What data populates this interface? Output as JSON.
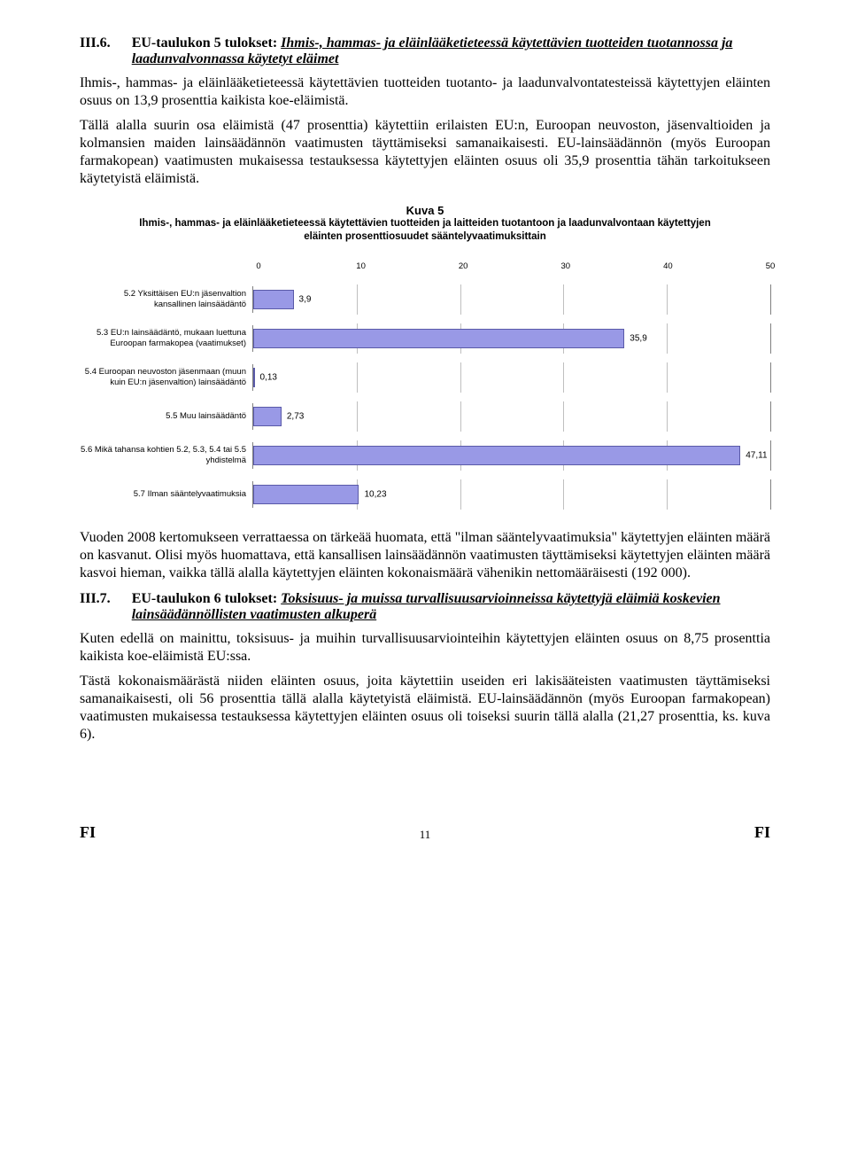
{
  "section6": {
    "num": "III.6.",
    "title_lead": "EU-taulukon 5 tulokset: ",
    "title_italic": "Ihmis-, hammas- ja eläinlääketieteessä käytettävien tuotteiden tuotannossa ja laadunvalvonnassa käytetyt eläimet",
    "p1": "Ihmis-, hammas- ja eläinlääketieteessä käytettävien tuotteiden tuotanto- ja laadunvalvontatesteissä käytettyjen eläinten osuus on 13,9 prosenttia kaikista koe-eläimistä.",
    "p2": "Tällä alalla suurin osa eläimistä (47 prosenttia) käytettiin erilaisten EU:n, Euroopan neuvoston, jäsenvaltioiden ja kolmansien maiden lainsäädännön vaatimusten täyttämiseksi samanaikaisesti. EU-lainsäädännön (myös Euroopan farmakopean) vaatimusten mukaisessa testauksessa käytettyjen eläinten osuus oli 35,9 prosenttia tähän tarkoitukseen käytetyistä eläimistä."
  },
  "chart": {
    "title": "Kuva 5",
    "subtitle": "Ihmis-, hammas- ja eläinlääketieteessä käytettävien tuotteiden ja laitteiden tuotantoon ja laadunvalvontaan käytettyjen eläinten prosenttiosuudet sääntelyvaatimuksittain",
    "xmin": 0,
    "xmax": 50,
    "xtick_step": 10,
    "ticks": [
      0,
      10,
      20,
      30,
      40,
      50
    ],
    "bar_fill": "#9999e6",
    "bar_border": "#5a5aa8",
    "grid_color": "#bfbfbf",
    "axis_color": "#808080",
    "background": "#ffffff",
    "label_fontsize": 9.5,
    "value_fontsize": 10,
    "rows": [
      {
        "label": "5.2    Yksittäisen EU:n jäsenvaltion kansallinen lainsäädäntö",
        "value": 3.9,
        "value_text": "3,9"
      },
      {
        "label": "5.3    EU:n lainsäädäntö, mukaan luettuna Euroopan farmakopea (vaatimukset)",
        "value": 35.9,
        "value_text": "35,9"
      },
      {
        "label": "5.4    Euroopan neuvoston jäsenmaan (muun kuin EU:n jäsenvaltion) lainsäädäntö",
        "value": 0.13,
        "value_text": "0,13"
      },
      {
        "label": "5.5    Muu lainsäädäntö",
        "value": 2.73,
        "value_text": "2,73"
      },
      {
        "label": "5.6    Mikä tahansa kohtien 5.2, 5.3, 5.4 tai 5.5 yhdistelmä",
        "value": 47.11,
        "value_text": "47,11"
      },
      {
        "label": "5.7    Ilman sääntelyvaatimuksia",
        "value": 10.23,
        "value_text": "10,23"
      }
    ]
  },
  "after_chart": {
    "p1": "Vuoden 2008 kertomukseen verrattaessa on tärkeää huomata, että \"ilman sääntelyvaatimuksia\" käytettyjen eläinten määrä on kasvanut. Olisi myös huomattava, että kansallisen lainsäädännön vaatimusten täyttämiseksi käytettyjen eläinten määrä kasvoi hieman, vaikka tällä alalla käytettyjen eläinten kokonaismäärä vähenikin nettomääräisesti (192 000)."
  },
  "section7": {
    "num": "III.7.",
    "title_lead": "EU-taulukon 6 tulokset: ",
    "title_italic": "Toksisuus- ja muissa turvallisuusarvioinneissa käytettyjä eläimiä koskevien lainsäädännöllisten vaatimusten alkuperä",
    "p1": "Kuten edellä on mainittu, toksisuus- ja muihin turvallisuusarviointeihin käytettyjen eläinten osuus on 8,75 prosenttia kaikista koe-eläimistä EU:ssa.",
    "p2": "Tästä kokonaismäärästä niiden eläinten osuus, joita käytettiin useiden eri lakisääteisten vaatimusten täyttämiseksi samanaikaisesti, oli 56 prosenttia tällä alalla käytetyistä eläimistä. EU-lainsäädännön (myös Euroopan farmakopean) vaatimusten mukaisessa testauksessa käytettyjen eläinten osuus oli toiseksi suurin tällä alalla (21,27 prosenttia, ks. kuva 6)."
  },
  "footer": {
    "left": "FI",
    "page": "11",
    "right": "FI"
  }
}
